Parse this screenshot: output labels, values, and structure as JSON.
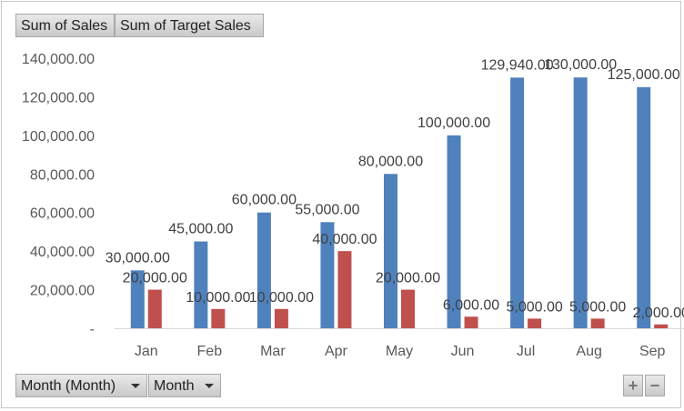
{
  "legend_buttons": {
    "series1": "Sum of Sales",
    "series2": "Sum of Target Sales"
  },
  "axis_buttons": {
    "field1": "Month (Month)",
    "field2": "Month"
  },
  "zoom_buttons": {
    "plus": "+",
    "minus": "−"
  },
  "chart_data": {
    "type": "bar",
    "categories": [
      "Jan",
      "Feb",
      "Mar",
      "Apr",
      "May",
      "Jun",
      "Jul",
      "Aug",
      "Sep"
    ],
    "series": [
      {
        "name": "Sum of Sales",
        "color": "#4f81bd",
        "values": [
          30000,
          45000,
          60000,
          55000,
          80000,
          100000,
          129940,
          130000,
          125000
        ],
        "labels": [
          "30,000.00",
          "45,000.00",
          "60,000.00",
          "55,000.00",
          "80,000.00",
          "100,000.00",
          "129,940.00",
          "130,000.00",
          "125,000.00"
        ]
      },
      {
        "name": "Sum of Target Sales",
        "color": "#c0504d",
        "values": [
          20000,
          10000,
          10000,
          40000,
          20000,
          6000,
          5000,
          5000,
          2000
        ],
        "labels": [
          "20,000.00",
          "10,000.00",
          "10,000.00",
          "40,000.00",
          "20,000.00",
          "6,000.00",
          "5,000.00",
          "5,000.00",
          "2,000.00"
        ]
      }
    ],
    "ylim": [
      0,
      140000
    ],
    "yticks": [
      "-",
      "20,000.00",
      "40,000.00",
      "60,000.00",
      "80,000.00",
      "100,000.00",
      "120,000.00",
      "140,000.00"
    ],
    "grid": false,
    "legend": "top-left"
  }
}
